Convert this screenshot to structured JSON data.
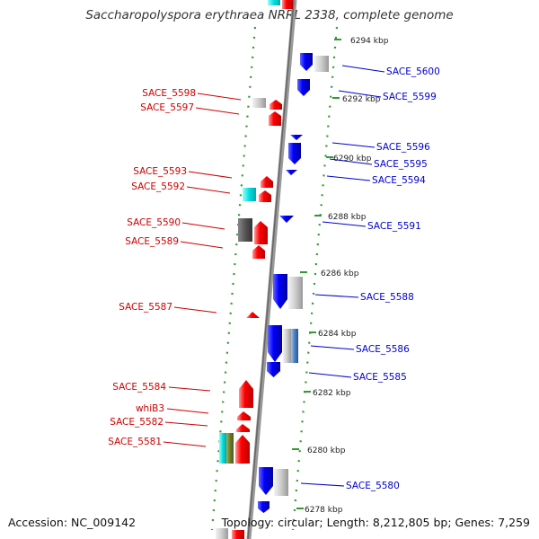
{
  "title": "Saccharopolyspora erythraea NRRL 2338, complete genome",
  "footer": {
    "accession": "Accession: NC_009142",
    "summary": "Topology: circular; Length: 8,212,805 bp; Genes: 7,259"
  },
  "colors": {
    "forward_strand_gene": "#ff0000",
    "reverse_strand_gene": "#0000ff",
    "forward_label": "#cc0000",
    "reverse_label": "#0000cc",
    "other_gene_grey": "#cccccc",
    "other_gene_dark": "#555555",
    "other_gene_cyan": "#00dddd",
    "backbone": "#888888",
    "tick_dots": "#339933"
  },
  "scale_labels": [
    "6294 kbp",
    "6292 kbp",
    "6290 kbp",
    "6288 kbp",
    "6286 kbp",
    "6284 kbp",
    "6282 kbp",
    "6280 kbp",
    "6278 kbp"
  ],
  "left_labels": [
    "SACE_5598",
    "SACE_5597",
    "SACE_5593",
    "SACE_5592",
    "SACE_5590",
    "SACE_5589",
    "SACE_5587",
    "SACE_5584",
    "whiB3",
    "SACE_5582",
    "SACE_5581"
  ],
  "right_labels": [
    "SACE_5600",
    "SACE_5599",
    "SACE_5596",
    "SACE_5595",
    "SACE_5594",
    "SACE_5591",
    "SACE_5588",
    "SACE_5586",
    "SACE_5585",
    "SACE_5580"
  ]
}
